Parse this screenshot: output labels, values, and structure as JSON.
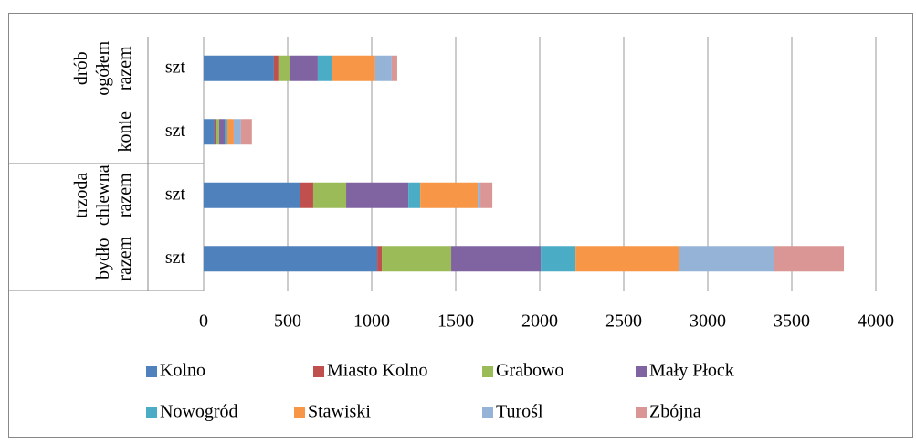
{
  "chart_data": {
    "type": "stacked-barh",
    "categories": [
      "bydło razem",
      "trzoda chlewna razem",
      "konie",
      "drób ogółem razem"
    ],
    "units": [
      "szt",
      "szt",
      "szt",
      "szt"
    ],
    "series": [
      {
        "name": "Kolno",
        "color": "#4f81bd",
        "values": [
          1033,
          576,
          65,
          418
        ]
      },
      {
        "name": "Miasto Kolno",
        "color": "#c0504d",
        "values": [
          27,
          76,
          11,
          27
        ]
      },
      {
        "name": "Grabowo",
        "color": "#9bbb59",
        "values": [
          413,
          196,
          16,
          71
        ]
      },
      {
        "name": "Mały Płock",
        "color": "#8064a2",
        "values": [
          533,
          370,
          33,
          163
        ]
      },
      {
        "name": "Nowogród",
        "color": "#4bacc6",
        "values": [
          207,
          71,
          16,
          87
        ]
      },
      {
        "name": "Stawiski",
        "color": "#f79646",
        "values": [
          614,
          342,
          38,
          255
        ]
      },
      {
        "name": "Turośl",
        "color": "#95b3d7",
        "values": [
          565,
          16,
          43,
          98
        ]
      },
      {
        "name": "Zbójna",
        "color": "#da9694",
        "values": [
          418,
          71,
          65,
          33
        ]
      }
    ],
    "xlim": [
      0,
      4000
    ],
    "xticks": [
      0,
      500,
      1000,
      1500,
      2000,
      2500,
      3000,
      3500,
      4000
    ],
    "grid": true,
    "legend": "bottom"
  }
}
